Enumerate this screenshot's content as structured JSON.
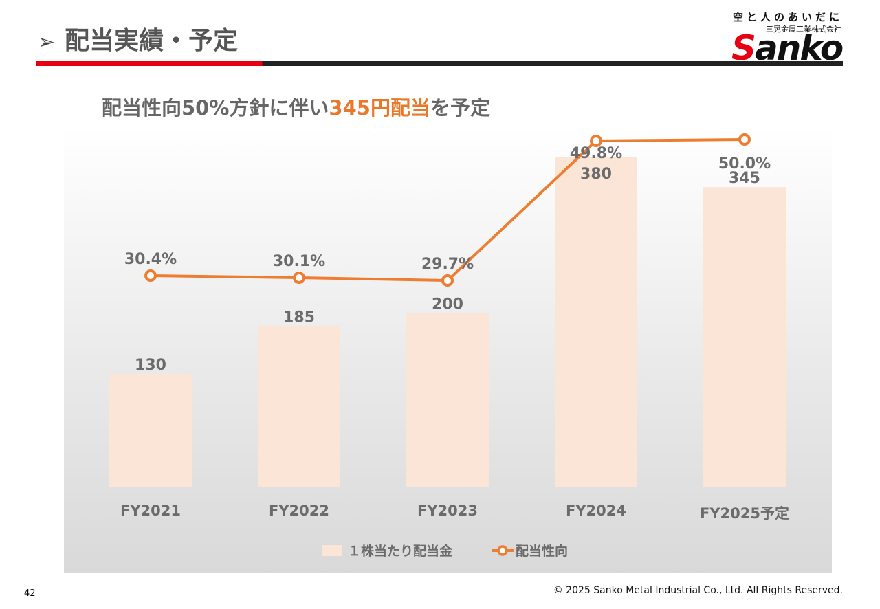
{
  "slide": {
    "title": "配当実績・予定",
    "title_marker": "➢",
    "headline_prefix": "配当性向50%方針に伴い",
    "headline_highlight": "345円配当",
    "headline_suffix": "を予定",
    "page_number": "42",
    "copyright": "© 2025 Sanko Metal Industrial Co., Ltd. All Rights Reserved."
  },
  "logo": {
    "tagline": "空と人のあいだに",
    "company": "三晃金属工業株式会社",
    "wordmark_first": "S",
    "wordmark_rest": "anko"
  },
  "colors": {
    "bar": "#fbe5d6",
    "line": "#ed7d31",
    "label": "#6b6b6b",
    "highlight": "#e8792c",
    "brand_red": "#e60012"
  },
  "chart_data": {
    "type": "bar",
    "categories": [
      "FY2021",
      "FY2022",
      "FY2023",
      "FY2024",
      "FY2025予定"
    ],
    "series": [
      {
        "name": "１株当たり配当金",
        "type": "bar",
        "values": [
          130,
          185,
          200,
          380,
          345
        ],
        "labels": [
          "130",
          "185",
          "200",
          "380",
          "345"
        ]
      },
      {
        "name": "配当性向",
        "type": "line",
        "values": [
          30.4,
          30.1,
          29.7,
          49.8,
          50.0
        ],
        "labels": [
          "30.4%",
          "30.1%",
          "29.7%",
          "49.8%",
          "50.0%"
        ]
      }
    ],
    "legend": "bottom-center",
    "grid": false
  }
}
